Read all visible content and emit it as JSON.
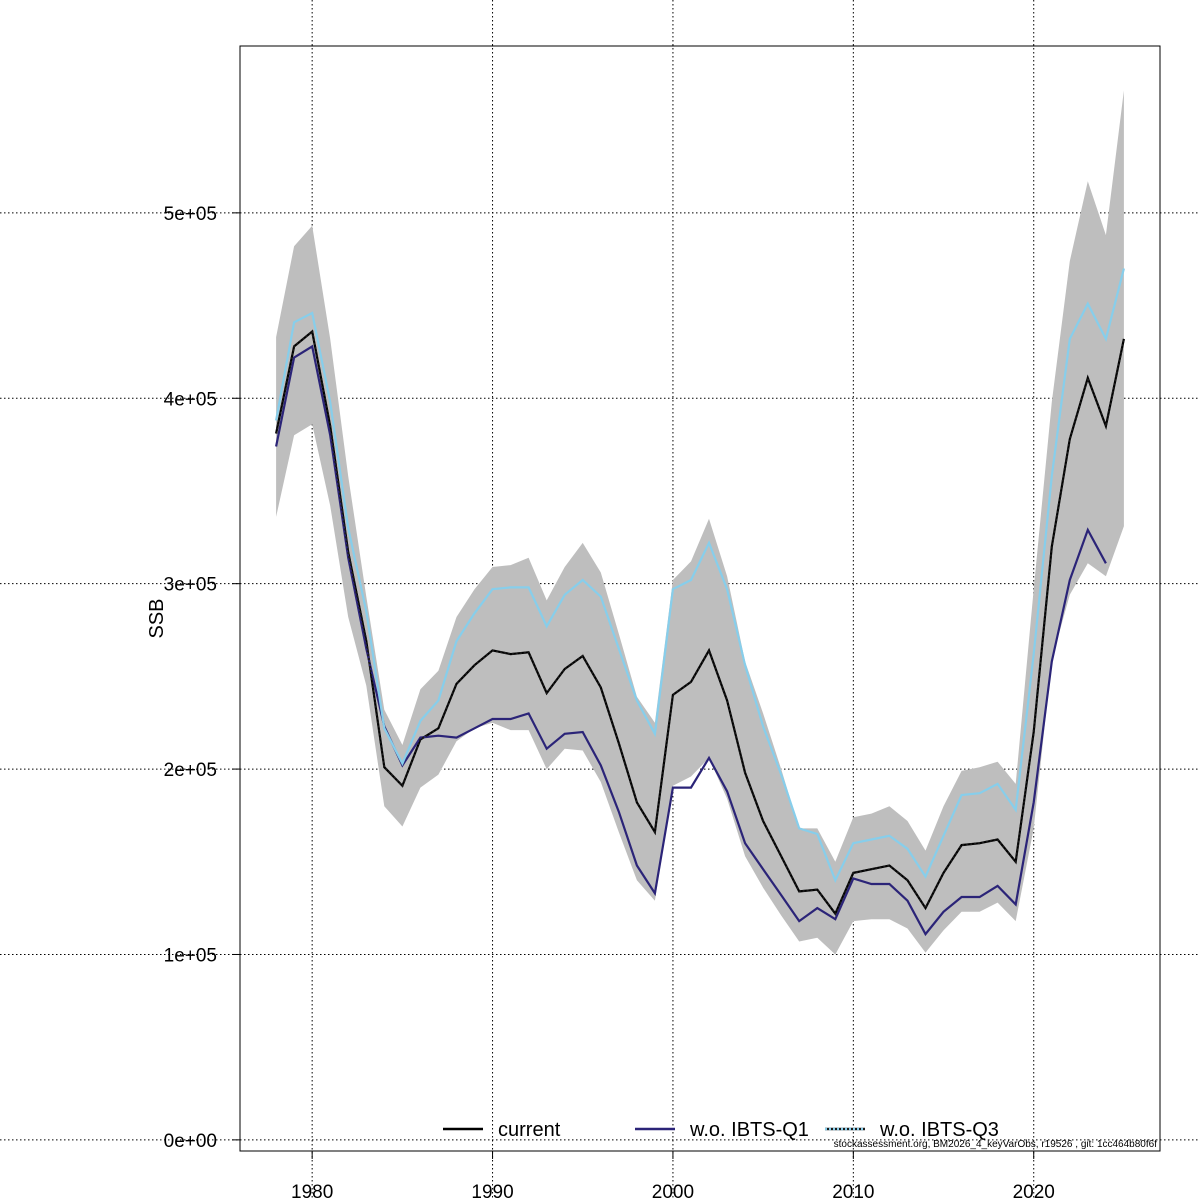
{
  "chart_data": {
    "type": "line",
    "title": "",
    "xlabel": "",
    "ylabel": "SSB",
    "xlim": [
      1976,
      2027
    ],
    "ylim": [
      -6000,
      590000
    ],
    "x_ticks": [
      1980,
      1990,
      2000,
      2010,
      2020
    ],
    "x_tick_labels": [
      "1980",
      "1990",
      "2000",
      "2010",
      "2020"
    ],
    "y_ticks": [
      0,
      100000,
      200000,
      300000,
      400000,
      500000
    ],
    "y_tick_labels": [
      "0e+00",
      "1e+05",
      "2e+05",
      "3e+05",
      "4e+05",
      "5e+05"
    ],
    "grid": true,
    "legend_position": "bottom-center",
    "legend": [
      {
        "label": "current",
        "color": "#000000",
        "style": "solid"
      },
      {
        "label": "w.o. IBTS-Q1",
        "color": "#2b2478",
        "style": "solid"
      },
      {
        "label": "w.o. IBTS-Q3",
        "color": "#87ceeb",
        "style": "dotted"
      }
    ],
    "footnote": "stockassessment.org, BM2026_4_keyVarObs, r19526 , git: 1cc464b80f6f",
    "colors": {
      "band": "#bebebe",
      "current": "#000000",
      "q1": "#2b2478",
      "q3": "#87ceeb",
      "grid": "#000000"
    },
    "confidence_band": {
      "x": [
        1978,
        1979,
        1980,
        1981,
        1982,
        1983,
        1984,
        1985,
        1986,
        1987,
        1988,
        1989,
        1990,
        1991,
        1992,
        1993,
        1994,
        1995,
        1996,
        1997,
        1998,
        1999,
        2000,
        2001,
        2002,
        2003,
        2004,
        2005,
        2006,
        2007,
        2008,
        2009,
        2010,
        2011,
        2012,
        2013,
        2014,
        2015,
        2016,
        2017,
        2018,
        2019,
        2020,
        2021,
        2022,
        2023,
        2024,
        2025
      ],
      "upper": [
        433000,
        482000,
        493000,
        432000,
        358000,
        293000,
        232000,
        213000,
        243000,
        253000,
        282000,
        297000,
        309000,
        310000,
        314000,
        291000,
        309000,
        322000,
        306000,
        273000,
        239000,
        225000,
        302000,
        312000,
        335000,
        304000,
        258000,
        230000,
        200000,
        168000,
        168000,
        150000,
        174000,
        176000,
        180000,
        172000,
        156000,
        180000,
        199000,
        201000,
        204000,
        192000,
        297000,
        398000,
        474000,
        517000,
        488000,
        566000
      ],
      "lower": [
        336000,
        380000,
        386000,
        342000,
        282000,
        245000,
        180000,
        169000,
        190000,
        197000,
        215000,
        222000,
        225000,
        221000,
        221000,
        200000,
        211000,
        210000,
        193000,
        166000,
        140000,
        129000,
        191000,
        196000,
        206000,
        184000,
        153000,
        136000,
        121000,
        107000,
        109000,
        100000,
        118000,
        119000,
        119000,
        114000,
        101000,
        113000,
        123000,
        123000,
        128000,
        118000,
        168000,
        259000,
        294000,
        311000,
        304000,
        331000
      ]
    },
    "series": [
      {
        "name": "current",
        "x": [
          1978,
          1979,
          1980,
          1981,
          1982,
          1983,
          1984,
          1985,
          1986,
          1987,
          1988,
          1989,
          1990,
          1991,
          1992,
          1993,
          1994,
          1995,
          1996,
          1997,
          1998,
          1999,
          2000,
          2001,
          2002,
          2003,
          2004,
          2005,
          2006,
          2007,
          2008,
          2009,
          2010,
          2011,
          2012,
          2013,
          2014,
          2015,
          2016,
          2017,
          2018,
          2019,
          2020,
          2021,
          2022,
          2023,
          2024,
          2025
        ],
        "values": [
          381000,
          428000,
          436000,
          385000,
          317000,
          269000,
          201000,
          191000,
          216000,
          222000,
          246000,
          256000,
          264000,
          262000,
          263000,
          241000,
          254000,
          261000,
          244000,
          214000,
          182000,
          166000,
          240000,
          247000,
          264000,
          237000,
          198000,
          172000,
          153000,
          134000,
          135000,
          122000,
          144000,
          146000,
          148000,
          140000,
          125000,
          144000,
          159000,
          160000,
          162000,
          150000,
          220000,
          320000,
          378000,
          411000,
          385000,
          432000
        ]
      },
      {
        "name": "w.o. IBTS-Q1",
        "x": [
          1978,
          1979,
          1980,
          1981,
          1982,
          1983,
          1984,
          1985,
          1986,
          1987,
          1988,
          1989,
          1990,
          1991,
          1992,
          1993,
          1994,
          1995,
          1996,
          1997,
          1998,
          1999,
          2000,
          2001,
          2002,
          2003,
          2004,
          2005,
          2006,
          2007,
          2008,
          2009,
          2010,
          2011,
          2012,
          2013,
          2014,
          2015,
          2016,
          2017,
          2018,
          2019,
          2020,
          2021,
          2022,
          2023,
          2024
        ],
        "values": [
          374000,
          422000,
          428000,
          380000,
          314000,
          265000,
          223000,
          202000,
          217000,
          218000,
          217000,
          222000,
          227000,
          227000,
          230000,
          211000,
          219000,
          220000,
          202000,
          177000,
          148000,
          133000,
          190000,
          190000,
          206000,
          188000,
          160000,
          146000,
          132000,
          118000,
          125000,
          119000,
          141000,
          138000,
          138000,
          129000,
          111000,
          123000,
          131000,
          131000,
          137000,
          127000,
          182000,
          258000,
          302000,
          329000,
          311000
        ]
      },
      {
        "name": "w.o. IBTS-Q3",
        "x": [
          1978,
          1979,
          1980,
          1981,
          1982,
          1983,
          1984,
          1985,
          1986,
          1987,
          1988,
          1989,
          1990,
          1991,
          1992,
          1993,
          1994,
          1995,
          1996,
          1997,
          1998,
          1999,
          2000,
          2001,
          2002,
          2003,
          2004,
          2005,
          2006,
          2007,
          2008,
          2009,
          2010,
          2011,
          2012,
          2013,
          2014,
          2015,
          2016,
          2017,
          2018,
          2019,
          2020,
          2021,
          2022,
          2023,
          2024,
          2025
        ],
        "values": [
          388000,
          441000,
          446000,
          398000,
          330000,
          285000,
          222000,
          203000,
          226000,
          237000,
          269000,
          284000,
          297000,
          298000,
          298000,
          277000,
          294000,
          302000,
          293000,
          265000,
          237000,
          219000,
          297000,
          302000,
          322000,
          297000,
          256000,
          223000,
          197000,
          168000,
          165000,
          140000,
          160000,
          162000,
          164000,
          157000,
          142000,
          164000,
          186000,
          187000,
          192000,
          178000,
          262000,
          358000,
          432000,
          451000,
          432000,
          470000
        ]
      }
    ]
  }
}
